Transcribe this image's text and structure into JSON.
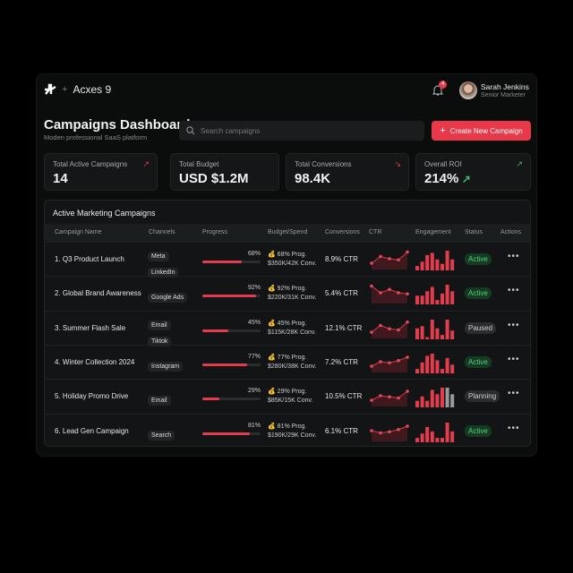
{
  "header": {
    "brand": "Acxes 9",
    "notification_count": "4",
    "user_name": "Sarah Jenkins",
    "user_role": "Senior Marketer"
  },
  "page": {
    "title": "Campaigns Dashboard",
    "subtitle": "Moden professional SaaS platform",
    "search_placeholder": "Search campaigns",
    "create_label": "Create New Campaign"
  },
  "kpis": [
    {
      "label": "Total Active Campaigns",
      "value": "14",
      "trend": "up",
      "color": "#e8384a"
    },
    {
      "label": "Total Budget",
      "value": "USD $1.2M",
      "trend": "none"
    },
    {
      "label": "Total Conversions",
      "value": "98.4K",
      "trend": "down",
      "color": "#e8384a"
    },
    {
      "label": "Overall ROI",
      "value": "214%",
      "trend": "up",
      "color": "#3fbf6a"
    }
  ],
  "table": {
    "title": "Active Marketing Campaigns",
    "columns": [
      "Campaign Name",
      "Channels",
      "Progress",
      "Budget/Spend",
      "Conversions",
      "CTR",
      "Engagement",
      "Status",
      "Actions"
    ],
    "rows": [
      {
        "name": "1. Q3 Product Launch",
        "channels": [
          "Meta",
          "LinkedIn"
        ],
        "progress": 68,
        "progress_label": "68%",
        "budget_line1": "68% Prog.",
        "budget_line2": "$350K/42K Conv.",
        "ctr": "8.9% CTR",
        "status": "Active",
        "spark": [
          2,
          5,
          4,
          3.5,
          7
        ],
        "engagement": [
          2,
          4,
          7,
          8,
          5,
          3,
          9,
          5
        ]
      },
      {
        "name": "2. Global Brand Awareness",
        "channels": [
          "Google Ads"
        ],
        "progress": 92,
        "progress_label": "92%",
        "budget_line1": "92% Prog.",
        "budget_line2": "$220K/31K Conv.",
        "ctr": "5.4% CTR",
        "status": "Active",
        "spark": [
          7,
          4,
          5.5,
          4,
          3.5
        ],
        "engagement": [
          4,
          4,
          6,
          8,
          2,
          5,
          9,
          6
        ]
      },
      {
        "name": "3. Summer Flash Sale",
        "channels": [
          "Email",
          "Tiktok"
        ],
        "progress": 45,
        "progress_label": "45%",
        "budget_line1": "45% Prog.",
        "budget_line2": "$115K/28K Conv.",
        "ctr": "12.1% CTR",
        "status": "Paused",
        "spark": [
          2,
          5,
          3.5,
          3,
          6.5
        ],
        "engagement": [
          5,
          6,
          1,
          9,
          5,
          2,
          9,
          4
        ]
      },
      {
        "name": "4. Winter Collection 2024",
        "channels": [
          "Instagram"
        ],
        "progress": 77,
        "progress_label": "77%",
        "budget_line1": "77% Prog.",
        "budget_line2": "$280K/38K Conv.",
        "ctr": "7.2% CTR",
        "status": "Active",
        "spark": [
          2,
          4,
          3.5,
          4.5,
          6
        ],
        "engagement": [
          2,
          5,
          8,
          9,
          6,
          2,
          7,
          4
        ]
      },
      {
        "name": "5. Holiday Promo Drive",
        "channels": [
          "Email"
        ],
        "progress": 29,
        "progress_label": "29%",
        "budget_line1": "29% Prog.",
        "budget_line2": "$85K/15K Conv.",
        "ctr": "10.5% CTR",
        "status": "Planning",
        "spark": [
          2,
          4,
          3.5,
          3,
          6
        ],
        "engagement": [
          3,
          5,
          3,
          8,
          6,
          9,
          9,
          6
        ],
        "engagement_muted_from": 6
      },
      {
        "name": "6. Lead Gen Campaign",
        "channels": [
          "Search"
        ],
        "progress": 81,
        "progress_label": "81%",
        "budget_line1": "81% Prog.",
        "budget_line2": "$190K/29K Conv.",
        "ctr": "6.1% CTR",
        "status": "Active",
        "spark": [
          4,
          3,
          3.5,
          4.5,
          6
        ],
        "engagement": [
          2,
          4,
          7,
          5,
          2,
          2,
          9,
          5
        ]
      }
    ]
  },
  "colors": {
    "accent": "#e8384a",
    "active": "#4fd27a",
    "muted_bar": "#9a9a9a"
  }
}
